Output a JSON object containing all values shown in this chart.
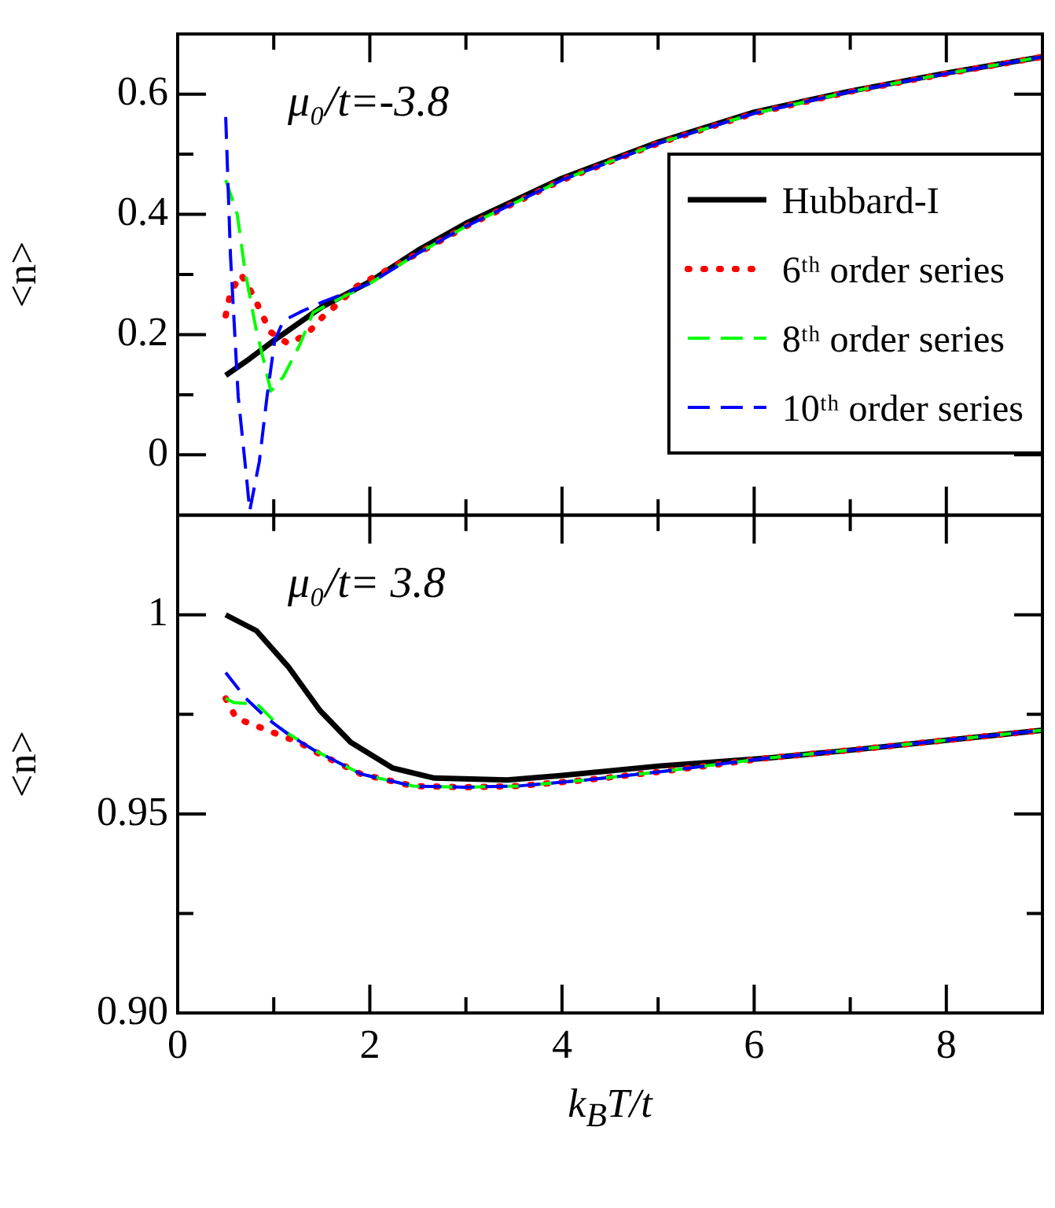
{
  "chart_data": [
    {
      "type": "line",
      "ylabel": "<n>",
      "annotations": [
        "μ₀/t=-3.8"
      ],
      "legend": "right",
      "tick_labels": "y",
      "xlim": [
        0,
        9
      ],
      "xticks": [
        0,
        {
          "value": 1,
          "label": null
        },
        2,
        {
          "value": 3,
          "label": null
        },
        4,
        {
          "value": 5,
          "label": null
        },
        6,
        {
          "value": 7,
          "label": null
        },
        8
      ],
      "ylim": [
        -0.1,
        0.7
      ],
      "yticks": [
        0,
        {
          "value": 0.1,
          "label": null
        },
        0.2,
        {
          "value": 0.3,
          "label": null
        },
        0.4,
        {
          "value": 0.5,
          "label": null
        },
        0.6
      ],
      "series": [
        {
          "name": "Hubbard-I",
          "color": "#000000",
          "line_style": "solid",
          "x": [
            0.5,
            0.75,
            1,
            1.5,
            2,
            2.5,
            3,
            4,
            5,
            6,
            7,
            8,
            9
          ],
          "values": [
            0.132,
            0.16,
            0.19,
            0.246,
            0.288,
            0.34,
            0.385,
            0.46,
            0.52,
            0.57,
            0.605,
            0.635,
            0.662
          ]
        },
        {
          "name": "6ᵗʰ order series",
          "color": "#ff0000",
          "line_style": "dotted",
          "x": [
            0.5,
            0.55,
            0.66,
            0.77,
            0.87,
            0.96,
            1.15,
            1.34,
            1.5,
            1.68,
            1.86,
            2.5,
            3,
            4,
            5,
            6,
            7,
            8,
            9
          ],
          "values": [
            0.232,
            0.27,
            0.3,
            0.27,
            0.237,
            0.205,
            0.185,
            0.2,
            0.228,
            0.253,
            0.28,
            0.335,
            0.38,
            0.457,
            0.518,
            0.568,
            0.604,
            0.634,
            0.662
          ]
        },
        {
          "name": "8ᵗʰ order series",
          "color": "#00ff00",
          "line_style": "dashed",
          "x": [
            0.5,
            0.62,
            0.7,
            0.81,
            0.97,
            1.1,
            1.27,
            1.41,
            1.6,
            2,
            2.5,
            3,
            4,
            5,
            6,
            7,
            8,
            9
          ],
          "values": [
            0.457,
            0.4,
            0.307,
            0.214,
            0.106,
            0.13,
            0.183,
            0.237,
            0.253,
            0.285,
            0.335,
            0.38,
            0.457,
            0.518,
            0.568,
            0.604,
            0.634,
            0.662
          ]
        },
        {
          "name": "10ᵗʰ order series",
          "color": "#0000ff",
          "line_style": "dashed",
          "x": [
            0.5,
            0.55,
            0.63,
            0.71,
            0.75,
            0.85,
            0.93,
            1.01,
            1.1,
            1.27,
            1.49,
            2,
            2.5,
            3,
            4,
            5,
            6,
            7,
            8,
            9
          ],
          "values": [
            0.562,
            0.33,
            0.097,
            -0.027,
            -0.093,
            -0.011,
            0.097,
            0.19,
            0.223,
            0.237,
            0.253,
            0.285,
            0.335,
            0.38,
            0.457,
            0.518,
            0.568,
            0.604,
            0.634,
            0.662
          ]
        }
      ]
    },
    {
      "type": "line",
      "ylabel": "<n>",
      "xlabel": "k$_{B}$T/t",
      "annotations": [
        "μ₀/t= 3.8"
      ],
      "xlim": [
        0,
        9
      ],
      "xticks": [
        0,
        {
          "value": 1,
          "label": null
        },
        2,
        {
          "value": 3,
          "label": null
        },
        4,
        {
          "value": 5,
          "label": null
        },
        6,
        {
          "value": 7,
          "label": null
        },
        8
      ],
      "ylim": [
        0.9,
        1.025
      ],
      "yticks": [
        {
          "value": 0.9,
          "label": "0.90"
        },
        {
          "value": 0.925,
          "label": null
        },
        0.95,
        {
          "value": 0.975,
          "label": null
        },
        1
      ],
      "series": [
        {
          "color": "#000000",
          "line_style": "solid",
          "x": [
            0.5,
            0.82,
            1.15,
            1.48,
            1.8,
            2.24,
            2.67,
            3.43,
            3.98,
            5,
            6.13,
            7,
            8,
            9
          ],
          "values": [
            1.0,
            0.996,
            0.987,
            0.976,
            0.968,
            0.9615,
            0.959,
            0.9585,
            0.9596,
            0.962,
            0.964,
            0.966,
            0.9685,
            0.971
          ]
        },
        {
          "color": "#ff0000",
          "line_style": "dotted",
          "x": [
            0.5,
            0.61,
            0.83,
            1.04,
            1.26,
            1.48,
            1.91,
            2.45,
            2.99,
            3.54,
            4.25,
            5.06,
            6.13,
            7,
            8,
            9
          ],
          "values": [
            0.979,
            0.974,
            0.972,
            0.97,
            0.968,
            0.965,
            0.96,
            0.957,
            0.9567,
            0.957,
            0.9585,
            0.9607,
            0.964,
            0.966,
            0.9685,
            0.971
          ]
        },
        {
          "color": "#00ff00",
          "line_style": "dashed",
          "x": [
            0.5,
            0.58,
            0.83,
            1.1,
            1.42,
            1.91,
            2.45,
            2.99,
            3.54,
            4.25,
            5.06,
            6.13,
            7,
            8,
            9
          ],
          "values": [
            0.979,
            0.978,
            0.9775,
            0.971,
            0.966,
            0.96,
            0.957,
            0.9567,
            0.957,
            0.9585,
            0.9607,
            0.964,
            0.966,
            0.9685,
            0.971
          ]
        },
        {
          "color": "#0000ff",
          "line_style": "dashed",
          "x": [
            0.5,
            0.71,
            0.93,
            1.15,
            1.42,
            1.91,
            2.45,
            2.99,
            3.54,
            4.25,
            5.06,
            6.13,
            7,
            8,
            9
          ],
          "values": [
            0.9855,
            0.979,
            0.974,
            0.97,
            0.966,
            0.96,
            0.957,
            0.9567,
            0.957,
            0.9585,
            0.9607,
            0.964,
            0.966,
            0.9685,
            0.971
          ]
        }
      ]
    }
  ]
}
